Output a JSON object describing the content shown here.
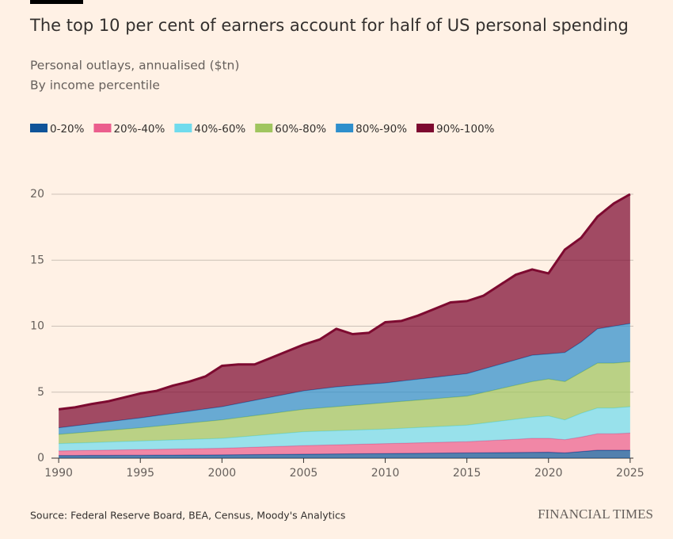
{
  "chart_data": {
    "type": "stacked_area",
    "title": "The top 10 per cent of earners account for half of US personal spending",
    "subtitle": "Personal outlays, annualised ($tn)",
    "subtitle2": "By income percentile",
    "source": "Source: Federal Reserve Board, BEA, Census, Moody's Analytics",
    "logo": "FINANCIAL TIMES",
    "x": [
      1990,
      1991,
      1992,
      1993,
      1994,
      1995,
      1996,
      1997,
      1998,
      1999,
      2000,
      2001,
      2002,
      2003,
      2004,
      2005,
      2006,
      2007,
      2008,
      2009,
      2010,
      2011,
      2012,
      2013,
      2014,
      2015,
      2016,
      2017,
      2018,
      2019,
      2020,
      2021,
      2022,
      2023,
      2024,
      2025
    ],
    "xlim": [
      1989.8,
      2025.2
    ],
    "xticks": [
      1990,
      1995,
      2000,
      2005,
      2010,
      2015,
      2020,
      2025
    ],
    "ylim": [
      0,
      20
    ],
    "yticks": [
      0,
      5,
      10,
      15,
      20
    ],
    "grid": true,
    "series": [
      {
        "name": "0-20%",
        "color": "#0f5499",
        "values": [
          0.2,
          0.2,
          0.21,
          0.21,
          0.22,
          0.22,
          0.23,
          0.23,
          0.24,
          0.24,
          0.25,
          0.26,
          0.27,
          0.28,
          0.29,
          0.3,
          0.31,
          0.32,
          0.33,
          0.34,
          0.35,
          0.36,
          0.37,
          0.38,
          0.39,
          0.4,
          0.41,
          0.42,
          0.43,
          0.44,
          0.45,
          0.4,
          0.5,
          0.6,
          0.6,
          0.6
        ]
      },
      {
        "name": "20%-40%",
        "color": "#eb5e8d",
        "values": [
          0.35,
          0.37,
          0.38,
          0.4,
          0.41,
          0.43,
          0.44,
          0.46,
          0.47,
          0.49,
          0.5,
          0.53,
          0.56,
          0.59,
          0.62,
          0.65,
          0.67,
          0.69,
          0.71,
          0.73,
          0.75,
          0.77,
          0.79,
          0.81,
          0.83,
          0.85,
          0.9,
          0.95,
          1.0,
          1.06,
          1.05,
          1.0,
          1.1,
          1.25,
          1.25,
          1.3
        ]
      },
      {
        "name": "40%-60%",
        "color": "#70dbed",
        "values": [
          0.55,
          0.57,
          0.59,
          0.61,
          0.63,
          0.65,
          0.67,
          0.69,
          0.71,
          0.73,
          0.75,
          0.81,
          0.87,
          0.93,
          0.99,
          1.05,
          1.06,
          1.07,
          1.08,
          1.09,
          1.1,
          1.13,
          1.16,
          1.19,
          1.22,
          1.25,
          1.34,
          1.43,
          1.52,
          1.6,
          1.7,
          1.5,
          1.8,
          1.95,
          1.95,
          2.0
        ]
      },
      {
        "name": "60%-80%",
        "color": "#a0c55f",
        "values": [
          0.7,
          0.76,
          0.82,
          0.88,
          0.94,
          1.0,
          1.08,
          1.16,
          1.24,
          1.32,
          1.4,
          1.46,
          1.52,
          1.58,
          1.64,
          1.7,
          1.76,
          1.82,
          1.88,
          1.94,
          2.0,
          2.04,
          2.08,
          2.12,
          2.16,
          2.2,
          2.32,
          2.45,
          2.58,
          2.7,
          2.8,
          2.9,
          3.1,
          3.4,
          3.4,
          3.4
        ]
      },
      {
        "name": "80%-90%",
        "color": "#2e8fcc",
        "values": [
          0.5,
          0.55,
          0.6,
          0.65,
          0.7,
          0.75,
          0.8,
          0.85,
          0.9,
          0.95,
          1.0,
          1.08,
          1.16,
          1.24,
          1.32,
          1.4,
          1.45,
          1.5,
          1.5,
          1.5,
          1.5,
          1.54,
          1.58,
          1.62,
          1.66,
          1.7,
          1.78,
          1.85,
          1.92,
          2.0,
          1.9,
          2.2,
          2.3,
          2.6,
          2.8,
          2.9
        ]
      },
      {
        "name": "90%-100%",
        "color": "#7d0a30",
        "values": [
          1.4,
          1.4,
          1.5,
          1.55,
          1.7,
          1.85,
          1.88,
          2.11,
          2.24,
          2.47,
          3.1,
          2.96,
          2.72,
          2.98,
          3.24,
          3.5,
          3.75,
          4.4,
          3.9,
          3.9,
          4.6,
          4.56,
          4.82,
          5.18,
          5.54,
          5.5,
          5.55,
          6.0,
          6.45,
          6.5,
          6.1,
          7.8,
          7.9,
          8.5,
          9.3,
          9.8
        ]
      }
    ]
  }
}
